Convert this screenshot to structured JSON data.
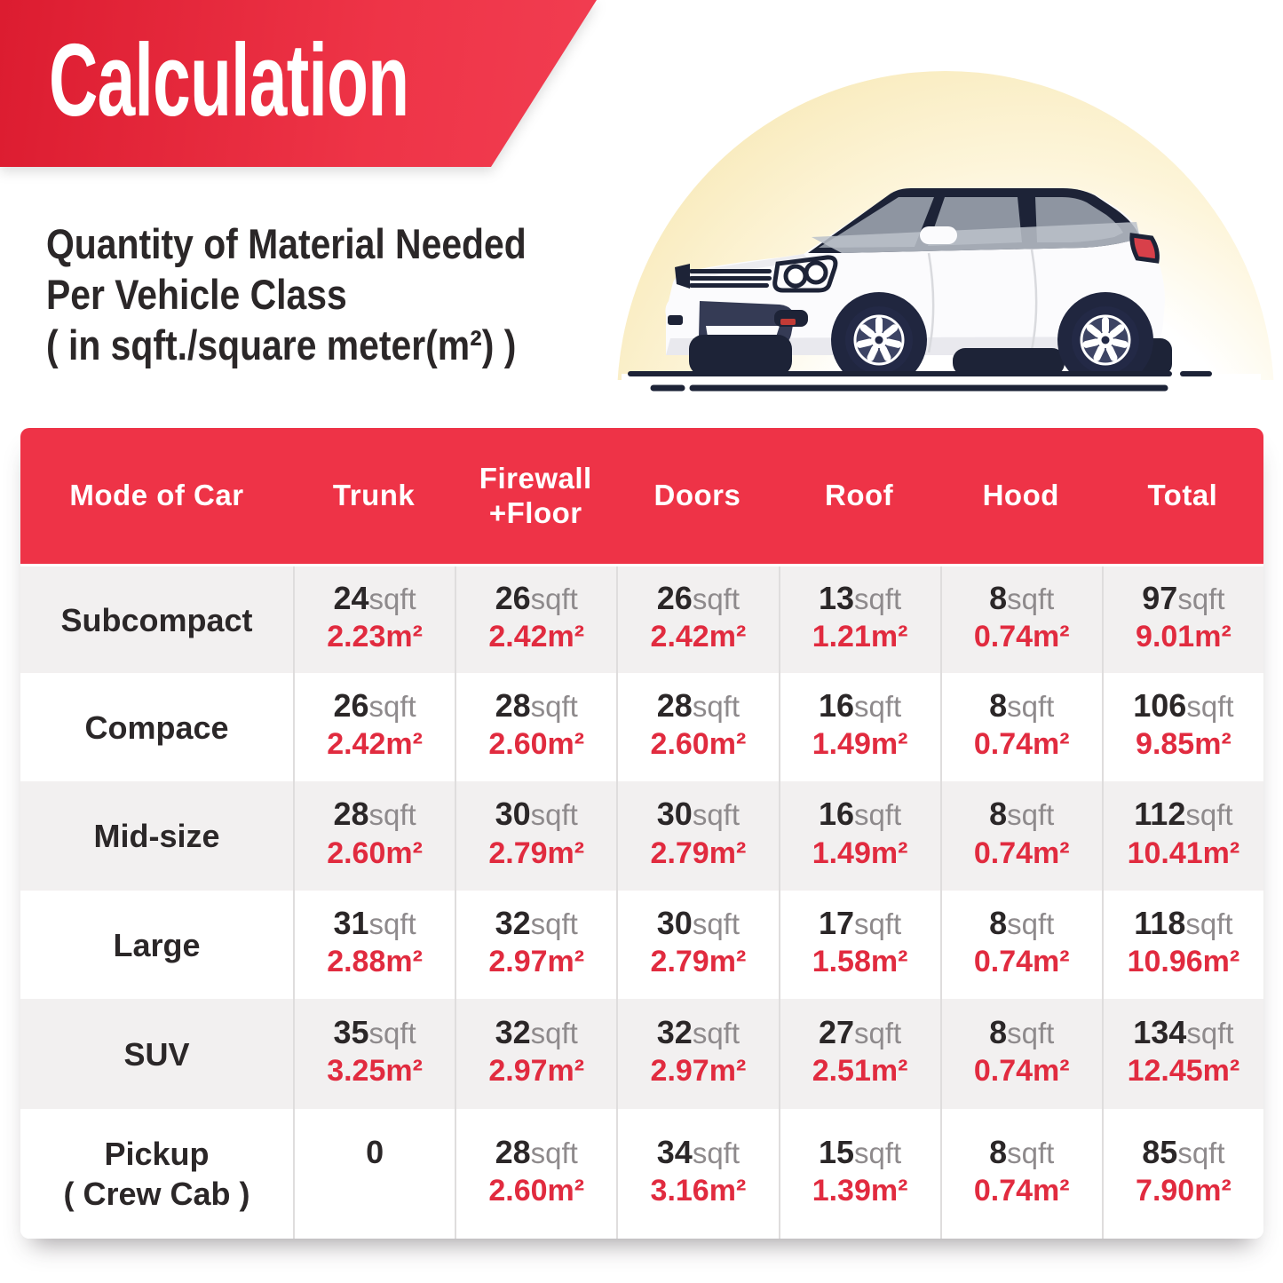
{
  "banner": {
    "title": "Calculation"
  },
  "subtitle": {
    "line1": "Quantity of Material Needed",
    "line2": "Per Vehicle Class",
    "line3": "( in sqft./square meter(m²) )"
  },
  "colors": {
    "banner_red_start": "#dc1c30",
    "banner_red_end": "#f23e52",
    "header_red": "#ee3347",
    "value_red": "#e12b3f",
    "text_dark": "#2b2728",
    "unit_gray": "#8e8a8c",
    "row_gray": "#f2f0f0",
    "glow_yellow": "#f4e1a1",
    "car_navy": "#1d2337"
  },
  "illustration": {
    "name": "white-crossover-car-on-yellow-glow"
  },
  "table": {
    "headers": [
      "Mode of Car",
      "Trunk",
      "Firewall\n+Floor",
      "Doors",
      "Roof",
      "Hood",
      "Total"
    ],
    "rows": [
      {
        "label": "Subcompact",
        "label2": "",
        "cells": [
          {
            "v": "24",
            "u": "sqft",
            "m2": "2.23m²"
          },
          {
            "v": "26",
            "u": "sqft",
            "m2": "2.42m²"
          },
          {
            "v": "26",
            "u": "sqft",
            "m2": "2.42m²"
          },
          {
            "v": "13",
            "u": "sqft",
            "m2": "1.21m²"
          },
          {
            "v": "8",
            "u": "sqft",
            "m2": "0.74m²"
          },
          {
            "v": "97",
            "u": "sqft",
            "m2": "9.01m²"
          }
        ]
      },
      {
        "label": "Compace",
        "label2": "",
        "cells": [
          {
            "v": "26",
            "u": "sqft",
            "m2": "2.42m²"
          },
          {
            "v": "28",
            "u": "sqft",
            "m2": "2.60m²"
          },
          {
            "v": "28",
            "u": "sqft",
            "m2": "2.60m²"
          },
          {
            "v": "16",
            "u": "sqft",
            "m2": "1.49m²"
          },
          {
            "v": "8",
            "u": "sqft",
            "m2": "0.74m²"
          },
          {
            "v": "106",
            "u": "sqft",
            "m2": "9.85m²"
          }
        ]
      },
      {
        "label": "Mid-size",
        "label2": "",
        "cells": [
          {
            "v": "28",
            "u": "sqft",
            "m2": "2.60m²"
          },
          {
            "v": "30",
            "u": "sqft",
            "m2": "2.79m²"
          },
          {
            "v": "30",
            "u": "sqft",
            "m2": "2.79m²"
          },
          {
            "v": "16",
            "u": "sqft",
            "m2": "1.49m²"
          },
          {
            "v": "8",
            "u": "sqft",
            "m2": "0.74m²"
          },
          {
            "v": "112",
            "u": "sqft",
            "m2": "10.41m²"
          }
        ]
      },
      {
        "label": "Large",
        "label2": "",
        "cells": [
          {
            "v": "31",
            "u": "sqft",
            "m2": "2.88m²"
          },
          {
            "v": "32",
            "u": "sqft",
            "m2": "2.97m²"
          },
          {
            "v": "30",
            "u": "sqft",
            "m2": "2.79m²"
          },
          {
            "v": "17",
            "u": "sqft",
            "m2": "1.58m²"
          },
          {
            "v": "8",
            "u": "sqft",
            "m2": "0.74m²"
          },
          {
            "v": "118",
            "u": "sqft",
            "m2": "10.96m²"
          }
        ]
      },
      {
        "label": "SUV",
        "label2": "",
        "cells": [
          {
            "v": "35",
            "u": "sqft",
            "m2": "3.25m²"
          },
          {
            "v": "32",
            "u": "sqft",
            "m2": "2.97m²"
          },
          {
            "v": "32",
            "u": "sqft",
            "m2": "2.97m²"
          },
          {
            "v": "27",
            "u": "sqft",
            "m2": "2.51m²"
          },
          {
            "v": "8",
            "u": "sqft",
            "m2": "0.74m²"
          },
          {
            "v": "134",
            "u": "sqft",
            "m2": "12.45m²"
          }
        ]
      },
      {
        "label": "Pickup",
        "label2": "( Crew Cab )",
        "cells": [
          {
            "v": "0",
            "u": "",
            "m2": ""
          },
          {
            "v": "28",
            "u": "sqft",
            "m2": "2.60m²"
          },
          {
            "v": "34",
            "u": "sqft",
            "m2": "3.16m²"
          },
          {
            "v": "15",
            "u": "sqft",
            "m2": "1.39m²"
          },
          {
            "v": "8",
            "u": "sqft",
            "m2": "0.74m²"
          },
          {
            "v": "85",
            "u": "sqft",
            "m2": "7.90m²"
          }
        ]
      }
    ]
  },
  "chart_data": {
    "type": "table",
    "title": "Calculation",
    "subtitle": "Quantity of Material Needed Per Vehicle Class ( in sqft./square meter(m²) )",
    "columns": [
      "Mode of Car",
      "Trunk",
      "Firewall +Floor",
      "Doors",
      "Roof",
      "Hood",
      "Total"
    ],
    "units": [
      "sqft",
      "m²"
    ],
    "rows": [
      {
        "mode": "Subcompact",
        "sqft": [
          24,
          26,
          26,
          13,
          8,
          97
        ],
        "m2": [
          2.23,
          2.42,
          2.42,
          1.21,
          0.74,
          9.01
        ]
      },
      {
        "mode": "Compace",
        "sqft": [
          26,
          28,
          28,
          16,
          8,
          106
        ],
        "m2": [
          2.42,
          2.6,
          2.6,
          1.49,
          0.74,
          9.85
        ]
      },
      {
        "mode": "Mid-size",
        "sqft": [
          28,
          30,
          30,
          16,
          8,
          112
        ],
        "m2": [
          2.6,
          2.79,
          2.79,
          1.49,
          0.74,
          10.41
        ]
      },
      {
        "mode": "Large",
        "sqft": [
          31,
          32,
          30,
          17,
          8,
          118
        ],
        "m2": [
          2.88,
          2.97,
          2.79,
          1.58,
          0.74,
          10.96
        ]
      },
      {
        "mode": "SUV",
        "sqft": [
          35,
          32,
          32,
          27,
          8,
          134
        ],
        "m2": [
          3.25,
          2.97,
          2.97,
          2.51,
          0.74,
          12.45
        ]
      },
      {
        "mode": "Pickup ( Crew Cab )",
        "sqft": [
          0,
          28,
          34,
          15,
          8,
          85
        ],
        "m2": [
          null,
          2.6,
          3.16,
          1.39,
          0.74,
          7.9
        ]
      }
    ]
  }
}
